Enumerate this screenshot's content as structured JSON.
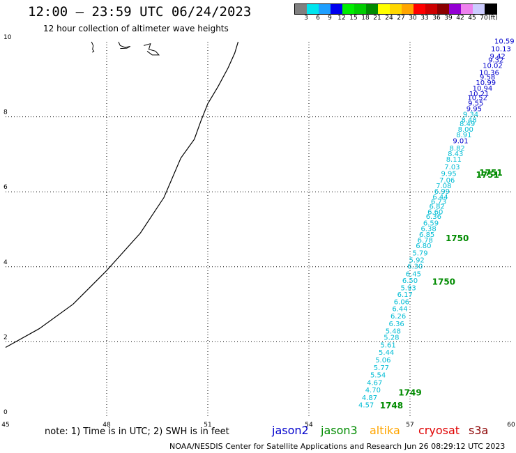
{
  "header": {
    "title": "12:00 – 23:59 UTC 06/24/2023",
    "subtitle": "12 hour collection of altimeter wave heights"
  },
  "colorbar": {
    "colors": [
      "#808080",
      "#00e5ee",
      "#1e9fff",
      "#0000ee",
      "#00ee00",
      "#00cd00",
      "#008b00",
      "#ffff00",
      "#ffd700",
      "#ffa500",
      "#ff0000",
      "#cd0000",
      "#8b0000",
      "#9400d3",
      "#ee82ee",
      "#ccccff",
      "#000000"
    ],
    "labels": [
      "3",
      "6",
      "9",
      "12",
      "15",
      "18",
      "21",
      "24",
      "27",
      "30",
      "33",
      "36",
      "39",
      "42",
      "45",
      "70",
      "(ft)"
    ]
  },
  "map": {
    "x_ticks": [
      "45",
      "48",
      "51",
      "54",
      "57",
      "60"
    ],
    "y_ticks": [
      "0",
      "2",
      "4",
      "6",
      "8",
      "10"
    ],
    "x_range": [
      45,
      60
    ],
    "y_range": [
      0,
      10
    ],
    "grid": "dotted",
    "coastline": [
      [
        45.0,
        1.85
      ],
      [
        46.0,
        2.35
      ],
      [
        47.0,
        3.0
      ],
      [
        48.0,
        3.9
      ],
      [
        49.0,
        4.9
      ],
      [
        49.7,
        5.85
      ],
      [
        50.2,
        6.9
      ],
      [
        50.6,
        7.4
      ],
      [
        50.8,
        7.9
      ],
      [
        51.0,
        8.35
      ],
      [
        51.3,
        8.8
      ],
      [
        51.6,
        9.3
      ],
      [
        51.8,
        9.7
      ],
      [
        51.9,
        10.0
      ]
    ],
    "islands": [
      [
        [
          47.55,
          10.0
        ],
        [
          47.6,
          9.9
        ],
        [
          47.58,
          9.8
        ],
        [
          47.62,
          9.75
        ],
        [
          47.57,
          9.72
        ]
      ],
      [
        [
          48.35,
          10.0
        ],
        [
          48.4,
          9.9
        ],
        [
          48.55,
          9.85
        ],
        [
          48.7,
          9.88
        ],
        [
          48.6,
          9.83
        ],
        [
          48.4,
          9.82
        ]
      ],
      [
        [
          49.1,
          9.9
        ],
        [
          49.3,
          9.95
        ],
        [
          49.25,
          9.8
        ],
        [
          49.45,
          9.75
        ],
        [
          49.55,
          9.65
        ],
        [
          49.35,
          9.65
        ],
        [
          49.2,
          9.75
        ]
      ]
    ]
  },
  "track_labels": {
    "jason2": [
      {
        "x": 59.8,
        "y": 9.95,
        "v": "10.59"
      },
      {
        "x": 59.7,
        "y": 9.75,
        "v": "10.13"
      },
      {
        "x": 59.6,
        "y": 9.55,
        "v": "9.42"
      },
      {
        "x": 59.55,
        "y": 9.45,
        "v": "9.32"
      },
      {
        "x": 59.45,
        "y": 9.3,
        "v": "10.02"
      },
      {
        "x": 59.35,
        "y": 9.12,
        "v": "10.36"
      },
      {
        "x": 59.3,
        "y": 9.0,
        "v": "9.58"
      },
      {
        "x": 59.25,
        "y": 8.85,
        "v": "10.99"
      },
      {
        "x": 59.15,
        "y": 8.7,
        "v": "10.94"
      },
      {
        "x": 59.05,
        "y": 8.55,
        "v": "10.21"
      },
      {
        "x": 59.0,
        "y": 8.45,
        "v": "10.52"
      },
      {
        "x": 58.95,
        "y": 8.3,
        "v": "9.55"
      },
      {
        "x": 58.9,
        "y": 8.15,
        "v": "9.95"
      },
      {
        "x": 58.5,
        "y": 7.3,
        "v": "9.01"
      }
    ],
    "jason2_cyan": [
      {
        "x": 58.8,
        "y": 8.0,
        "v": "9.34"
      },
      {
        "x": 58.75,
        "y": 7.85,
        "v": "8.48"
      },
      {
        "x": 58.7,
        "y": 7.75,
        "v": "8.49"
      },
      {
        "x": 58.65,
        "y": 7.6,
        "v": "8.00"
      },
      {
        "x": 58.6,
        "y": 7.45,
        "v": "8.91"
      },
      {
        "x": 58.4,
        "y": 7.1,
        "v": "8.82"
      },
      {
        "x": 58.35,
        "y": 6.95,
        "v": "8.43"
      },
      {
        "x": 58.3,
        "y": 6.8,
        "v": "8.11"
      },
      {
        "x": 58.25,
        "y": 6.6,
        "v": "7.03"
      },
      {
        "x": 58.15,
        "y": 6.42,
        "v": "9.95"
      },
      {
        "x": 58.1,
        "y": 6.25,
        "v": "7.06"
      },
      {
        "x": 58.0,
        "y": 6.1,
        "v": "7.08"
      },
      {
        "x": 57.95,
        "y": 5.95,
        "v": "6.99"
      },
      {
        "x": 57.9,
        "y": 5.8,
        "v": "6.44"
      },
      {
        "x": 57.85,
        "y": 5.68,
        "v": "6.73"
      },
      {
        "x": 57.8,
        "y": 5.55,
        "v": "6.82"
      },
      {
        "x": 57.75,
        "y": 5.4,
        "v": "6.60"
      },
      {
        "x": 57.7,
        "y": 5.28,
        "v": "6.36"
      },
      {
        "x": 57.62,
        "y": 5.1,
        "v": "6.59"
      },
      {
        "x": 57.55,
        "y": 4.95,
        "v": "6.38"
      },
      {
        "x": 57.5,
        "y": 4.8,
        "v": "6.85"
      },
      {
        "x": 57.45,
        "y": 4.65,
        "v": "6.78"
      },
      {
        "x": 57.4,
        "y": 4.5,
        "v": "6.80"
      },
      {
        "x": 57.3,
        "y": 4.3,
        "v": "5.79"
      },
      {
        "x": 57.2,
        "y": 4.12,
        "v": "5.92"
      },
      {
        "x": 57.15,
        "y": 3.95,
        "v": "6.30"
      },
      {
        "x": 57.1,
        "y": 3.75,
        "v": "6.45"
      },
      {
        "x": 57.0,
        "y": 3.57,
        "v": "6.50"
      },
      {
        "x": 56.95,
        "y": 3.37,
        "v": "5.93"
      },
      {
        "x": 56.85,
        "y": 3.2,
        "v": "6.17"
      },
      {
        "x": 56.75,
        "y": 3.0,
        "v": "6.06"
      },
      {
        "x": 56.7,
        "y": 2.82,
        "v": "6.44"
      },
      {
        "x": 56.65,
        "y": 2.62,
        "v": "6.26"
      },
      {
        "x": 56.6,
        "y": 2.42,
        "v": "6.36"
      },
      {
        "x": 56.5,
        "y": 2.22,
        "v": "5.48"
      },
      {
        "x": 56.45,
        "y": 2.05,
        "v": "5.28"
      },
      {
        "x": 56.35,
        "y": 1.85,
        "v": "5.61"
      },
      {
        "x": 56.3,
        "y": 1.65,
        "v": "5.44"
      },
      {
        "x": 56.2,
        "y": 1.45,
        "v": "5.06"
      },
      {
        "x": 56.15,
        "y": 1.25,
        "v": "5.77"
      },
      {
        "x": 56.05,
        "y": 1.05,
        "v": "5.54"
      },
      {
        "x": 55.95,
        "y": 0.85,
        "v": "4.67"
      },
      {
        "x": 55.9,
        "y": 0.65,
        "v": "4.70"
      },
      {
        "x": 55.8,
        "y": 0.45,
        "v": "4.87"
      },
      {
        "x": 55.7,
        "y": 0.25,
        "v": "4.57"
      }
    ],
    "times": [
      {
        "x": 59.4,
        "y": 6.43,
        "v": "1751"
      },
      {
        "x": 59.3,
        "y": 6.38,
        "v": "1751"
      },
      {
        "x": 58.4,
        "y": 4.68,
        "v": "1750"
      },
      {
        "x": 58.0,
        "y": 3.52,
        "v": "1750"
      },
      {
        "x": 57.0,
        "y": 0.57,
        "v": "1749"
      },
      {
        "x": 56.45,
        "y": 0.22,
        "v": "1748"
      }
    ]
  },
  "legend": {
    "note": "note: 1) Time is in UTC; 2) SWH is in feet",
    "sats": [
      {
        "name": "jason2",
        "color": "#0000cc"
      },
      {
        "name": "jason3",
        "color": "#008b00"
      },
      {
        "name": "altika",
        "color": "#ffa500"
      },
      {
        "name": "cryosat",
        "color": "#e00000"
      },
      {
        "name": "s3a",
        "color": "#8b0000"
      }
    ]
  },
  "footer": {
    "center": "NOAA/NESDIS Center for Satellite Applications and Research",
    "timestamp": "Jun 26 08:29:12 UTC 2023"
  }
}
